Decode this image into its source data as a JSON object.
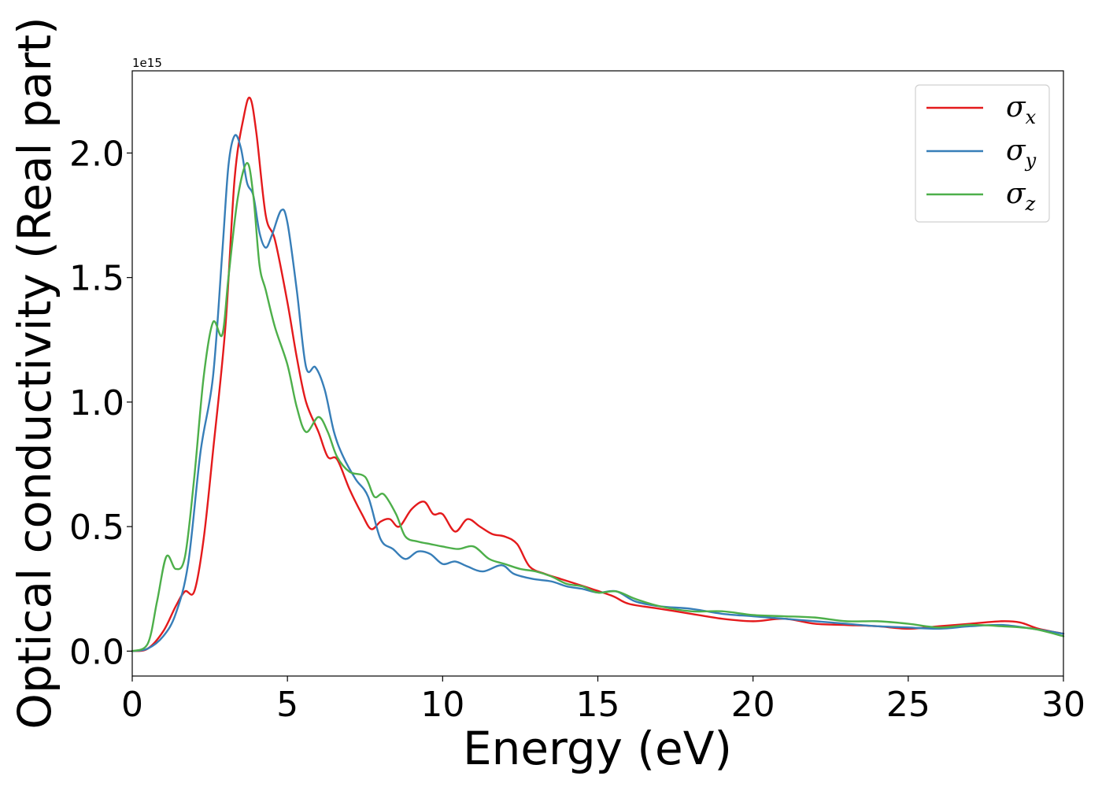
{
  "chart_data": {
    "type": "line",
    "title": "",
    "xlabel": "Energy (eV)",
    "ylabel": "Optical conductivity (Real part)",
    "y_offset_label": "1e15",
    "xlim": [
      0,
      30
    ],
    "ylim": [
      -0.1,
      2.33
    ],
    "xticks": [
      0,
      5,
      10,
      15,
      20,
      25,
      30
    ],
    "xtick_labels": [
      "0",
      "5",
      "10",
      "15",
      "20",
      "25",
      "30"
    ],
    "yticks": [
      0.0,
      0.5,
      1.0,
      1.5,
      2.0
    ],
    "ytick_labels": [
      "0.0",
      "0.5",
      "1.0",
      "1.5",
      "2.0"
    ],
    "grid": false,
    "legend_position": "top-right",
    "series": [
      {
        "name": "σx",
        "legend_symbol": "σ",
        "legend_subscript": "x",
        "color": "#e41a1c",
        "points": [
          [
            0,
            0
          ],
          [
            0.5,
            0.01
          ],
          [
            1.0,
            0.08
          ],
          [
            1.4,
            0.18
          ],
          [
            1.7,
            0.24
          ],
          [
            2.0,
            0.24
          ],
          [
            2.3,
            0.45
          ],
          [
            2.6,
            0.8
          ],
          [
            3.0,
            1.3
          ],
          [
            3.3,
            1.9
          ],
          [
            3.6,
            2.15
          ],
          [
            3.8,
            2.22
          ],
          [
            4.0,
            2.08
          ],
          [
            4.3,
            1.75
          ],
          [
            4.6,
            1.65
          ],
          [
            5.0,
            1.4
          ],
          [
            5.3,
            1.18
          ],
          [
            5.6,
            1.0
          ],
          [
            6.0,
            0.88
          ],
          [
            6.3,
            0.78
          ],
          [
            6.6,
            0.77
          ],
          [
            7.0,
            0.65
          ],
          [
            7.4,
            0.55
          ],
          [
            7.7,
            0.49
          ],
          [
            8.0,
            0.52
          ],
          [
            8.3,
            0.53
          ],
          [
            8.6,
            0.5
          ],
          [
            9.0,
            0.57
          ],
          [
            9.4,
            0.6
          ],
          [
            9.7,
            0.55
          ],
          [
            10.0,
            0.55
          ],
          [
            10.4,
            0.48
          ],
          [
            10.8,
            0.53
          ],
          [
            11.2,
            0.5
          ],
          [
            11.6,
            0.47
          ],
          [
            12.0,
            0.46
          ],
          [
            12.4,
            0.43
          ],
          [
            12.8,
            0.34
          ],
          [
            13.3,
            0.31
          ],
          [
            13.8,
            0.29
          ],
          [
            14.3,
            0.27
          ],
          [
            14.8,
            0.25
          ],
          [
            15.5,
            0.22
          ],
          [
            16.0,
            0.19
          ],
          [
            17.0,
            0.17
          ],
          [
            18.0,
            0.15
          ],
          [
            19.0,
            0.13
          ],
          [
            20.0,
            0.12
          ],
          [
            21.0,
            0.13
          ],
          [
            22.0,
            0.11
          ],
          [
            23.0,
            0.105
          ],
          [
            24.0,
            0.1
          ],
          [
            25.0,
            0.09
          ],
          [
            26.0,
            0.1
          ],
          [
            27.0,
            0.11
          ],
          [
            28.0,
            0.12
          ],
          [
            28.6,
            0.115
          ],
          [
            29.2,
            0.09
          ],
          [
            30.0,
            0.07
          ]
        ]
      },
      {
        "name": "σy",
        "legend_symbol": "σ",
        "legend_subscript": "y",
        "color": "#377eb8",
        "points": [
          [
            0,
            0
          ],
          [
            0.5,
            0.01
          ],
          [
            1.0,
            0.06
          ],
          [
            1.4,
            0.15
          ],
          [
            1.8,
            0.35
          ],
          [
            2.2,
            0.8
          ],
          [
            2.6,
            1.1
          ],
          [
            2.9,
            1.6
          ],
          [
            3.1,
            1.95
          ],
          [
            3.3,
            2.07
          ],
          [
            3.5,
            2.02
          ],
          [
            3.7,
            1.88
          ],
          [
            3.9,
            1.83
          ],
          [
            4.1,
            1.68
          ],
          [
            4.3,
            1.62
          ],
          [
            4.5,
            1.67
          ],
          [
            4.8,
            1.77
          ],
          [
            5.0,
            1.72
          ],
          [
            5.3,
            1.45
          ],
          [
            5.6,
            1.14
          ],
          [
            5.9,
            1.14
          ],
          [
            6.2,
            1.05
          ],
          [
            6.5,
            0.88
          ],
          [
            6.8,
            0.78
          ],
          [
            7.2,
            0.69
          ],
          [
            7.6,
            0.62
          ],
          [
            8.0,
            0.45
          ],
          [
            8.4,
            0.41
          ],
          [
            8.8,
            0.37
          ],
          [
            9.2,
            0.4
          ],
          [
            9.6,
            0.39
          ],
          [
            10.0,
            0.35
          ],
          [
            10.4,
            0.36
          ],
          [
            10.8,
            0.34
          ],
          [
            11.3,
            0.32
          ],
          [
            11.9,
            0.345
          ],
          [
            12.3,
            0.31
          ],
          [
            12.9,
            0.29
          ],
          [
            13.5,
            0.28
          ],
          [
            14.0,
            0.26
          ],
          [
            14.5,
            0.25
          ],
          [
            15.0,
            0.235
          ],
          [
            15.6,
            0.24
          ],
          [
            16.2,
            0.2
          ],
          [
            17.0,
            0.18
          ],
          [
            18.0,
            0.17
          ],
          [
            19.0,
            0.15
          ],
          [
            20.0,
            0.14
          ],
          [
            21.0,
            0.13
          ],
          [
            22.0,
            0.12
          ],
          [
            23.0,
            0.11
          ],
          [
            24.0,
            0.1
          ],
          [
            25.0,
            0.095
          ],
          [
            26.0,
            0.09
          ],
          [
            27.0,
            0.1
          ],
          [
            28.0,
            0.105
          ],
          [
            29.0,
            0.09
          ],
          [
            30.0,
            0.07
          ]
        ]
      },
      {
        "name": "σz",
        "legend_symbol": "σ",
        "legend_subscript": "z",
        "color": "#4daf4a",
        "points": [
          [
            0,
            0
          ],
          [
            0.5,
            0.03
          ],
          [
            0.8,
            0.2
          ],
          [
            1.1,
            0.38
          ],
          [
            1.4,
            0.33
          ],
          [
            1.7,
            0.38
          ],
          [
            2.0,
            0.7
          ],
          [
            2.3,
            1.1
          ],
          [
            2.6,
            1.32
          ],
          [
            2.9,
            1.27
          ],
          [
            3.1,
            1.5
          ],
          [
            3.4,
            1.82
          ],
          [
            3.7,
            1.96
          ],
          [
            3.9,
            1.83
          ],
          [
            4.1,
            1.55
          ],
          [
            4.3,
            1.45
          ],
          [
            4.6,
            1.3
          ],
          [
            5.0,
            1.15
          ],
          [
            5.3,
            0.98
          ],
          [
            5.6,
            0.88
          ],
          [
            6.0,
            0.94
          ],
          [
            6.3,
            0.88
          ],
          [
            6.6,
            0.78
          ],
          [
            7.0,
            0.72
          ],
          [
            7.5,
            0.7
          ],
          [
            7.8,
            0.62
          ],
          [
            8.1,
            0.63
          ],
          [
            8.5,
            0.55
          ],
          [
            8.8,
            0.46
          ],
          [
            9.2,
            0.44
          ],
          [
            9.6,
            0.43
          ],
          [
            10.0,
            0.42
          ],
          [
            10.5,
            0.41
          ],
          [
            11.0,
            0.42
          ],
          [
            11.5,
            0.37
          ],
          [
            12.0,
            0.35
          ],
          [
            12.5,
            0.33
          ],
          [
            13.0,
            0.32
          ],
          [
            13.5,
            0.3
          ],
          [
            14.0,
            0.27
          ],
          [
            14.5,
            0.26
          ],
          [
            15.0,
            0.235
          ],
          [
            15.6,
            0.24
          ],
          [
            16.2,
            0.21
          ],
          [
            17.0,
            0.18
          ],
          [
            18.0,
            0.16
          ],
          [
            19.0,
            0.16
          ],
          [
            20.0,
            0.145
          ],
          [
            21.0,
            0.14
          ],
          [
            22.0,
            0.135
          ],
          [
            23.0,
            0.12
          ],
          [
            24.0,
            0.12
          ],
          [
            25.0,
            0.11
          ],
          [
            26.0,
            0.095
          ],
          [
            27.0,
            0.105
          ],
          [
            28.0,
            0.1
          ],
          [
            29.0,
            0.09
          ],
          [
            30.0,
            0.06
          ]
        ]
      }
    ]
  }
}
